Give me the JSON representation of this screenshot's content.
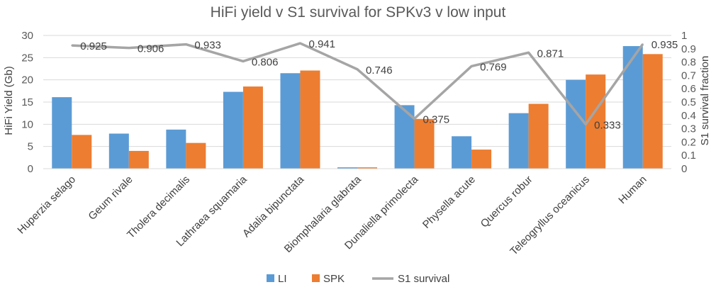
{
  "chart_data": {
    "type": "bar+line",
    "title": "HiFi yield v S1 survival for SPKv3  v low input",
    "ylabel_left": "HiFi Yield (Gb)",
    "ylabel_right": "S1 survival fraction",
    "ylim_left": [
      0,
      30
    ],
    "ylim_right": [
      0,
      1
    ],
    "yticks_left": [
      "0",
      "5",
      "10",
      "15",
      "20",
      "25",
      "30"
    ],
    "yticks_right": [
      "0",
      "0.1",
      "0.2",
      "0.3",
      "0.4",
      "0.5",
      "0.6",
      "0.7",
      "0.8",
      "0.9",
      "1"
    ],
    "categories": [
      "Huperzia selago",
      "Geum rivale",
      "Tholera decimalis",
      "Lathraea squamaria",
      "Adalia bipunctata",
      "Biomphalaria glabrata",
      "Dunaliella primolecta",
      "Physella acute",
      "Quercus robur",
      "Teleogryllus oceanicus",
      "Human"
    ],
    "series": [
      {
        "name": "LI",
        "type": "bar",
        "axis": "left",
        "color": "#5b9bd5",
        "values": [
          16.1,
          7.9,
          8.8,
          17.3,
          21.5,
          0.3,
          14.3,
          7.3,
          12.5,
          20.0,
          27.6
        ]
      },
      {
        "name": "SPK",
        "type": "bar",
        "axis": "left",
        "color": "#ed7d31",
        "values": [
          7.6,
          4.0,
          5.8,
          18.5,
          22.1,
          0.3,
          11.2,
          4.3,
          14.6,
          21.2,
          25.8
        ]
      },
      {
        "name": "S1 survival",
        "type": "line",
        "axis": "right",
        "color": "#a5a5a5",
        "values": [
          0.925,
          0.906,
          0.933,
          0.806,
          0.941,
          0.746,
          0.375,
          0.769,
          0.871,
          0.333,
          0.935
        ],
        "labels": [
          "0.925",
          "0.906",
          "0.933",
          "0.806",
          "0.941",
          "0.746",
          "0.375",
          "0.769",
          "0.871",
          "0.333",
          "0.935"
        ]
      }
    ],
    "legend": {
      "position": "bottom",
      "items": [
        "LI",
        "SPK",
        "S1 survival"
      ]
    },
    "grid": true
  }
}
